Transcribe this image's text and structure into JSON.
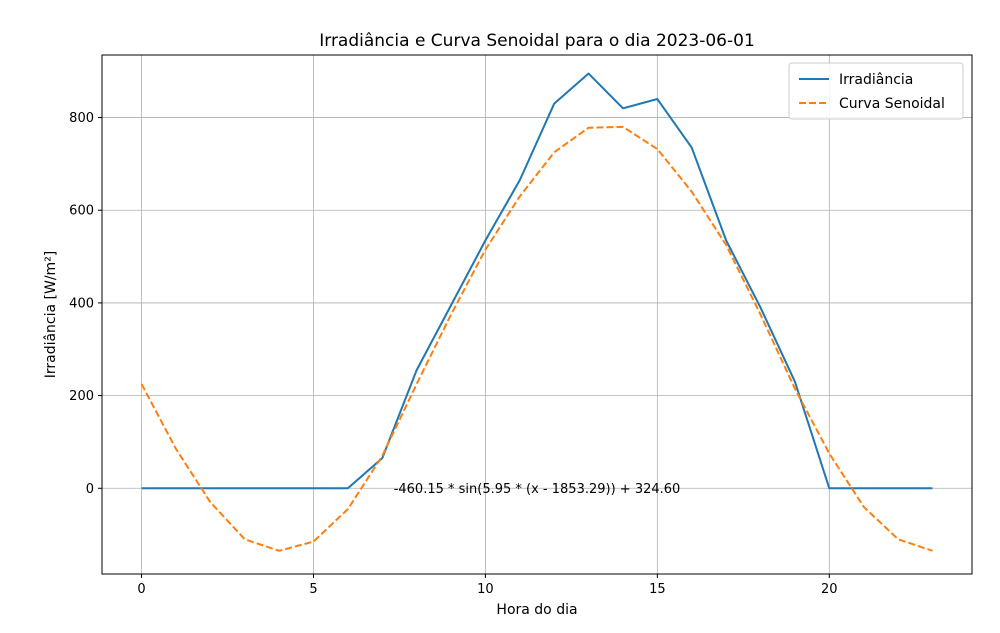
{
  "chart_data": {
    "type": "line",
    "title": "Irradiância e Curva Senoidal para o dia 2023-06-01",
    "xlabel": "Hora do dia",
    "ylabel": "Irradiância [W/m²]",
    "xlim": [
      -1.15,
      24.15
    ],
    "ylim": [
      -185,
      935
    ],
    "x_ticks": [
      0,
      5,
      10,
      15,
      20
    ],
    "y_ticks": [
      0,
      200,
      400,
      600,
      800
    ],
    "grid": true,
    "legend_position": "top-right",
    "annotation": {
      "text": "-460.15 * sin(5.95 * (x - 1853.29)) + 324.60",
      "x": 11.5,
      "y": 0
    },
    "x": [
      0,
      1,
      2,
      3,
      4,
      5,
      6,
      7,
      8,
      9,
      10,
      11,
      12,
      13,
      14,
      15,
      16,
      17,
      18,
      19,
      20,
      21,
      22,
      23
    ],
    "series": [
      {
        "name": "Irradiância",
        "color": "#1f77b4",
        "dash": "solid",
        "values": [
          0,
          0,
          0,
          0,
          0,
          0,
          0,
          65,
          255,
          395,
          535,
          665,
          830,
          895,
          820,
          840,
          735,
          535,
          390,
          230,
          0,
          0,
          0,
          0
        ]
      },
      {
        "name": "Curva Senoidal",
        "color": "#ff7f0e",
        "dash": "dashed",
        "values": [
          225,
          85,
          -30,
          -110,
          -135,
          -115,
          -45,
          70,
          225,
          375,
          515,
          630,
          725,
          778,
          780,
          732,
          640,
          525,
          375,
          215,
          75,
          -40,
          -110,
          -135
        ]
      }
    ]
  }
}
